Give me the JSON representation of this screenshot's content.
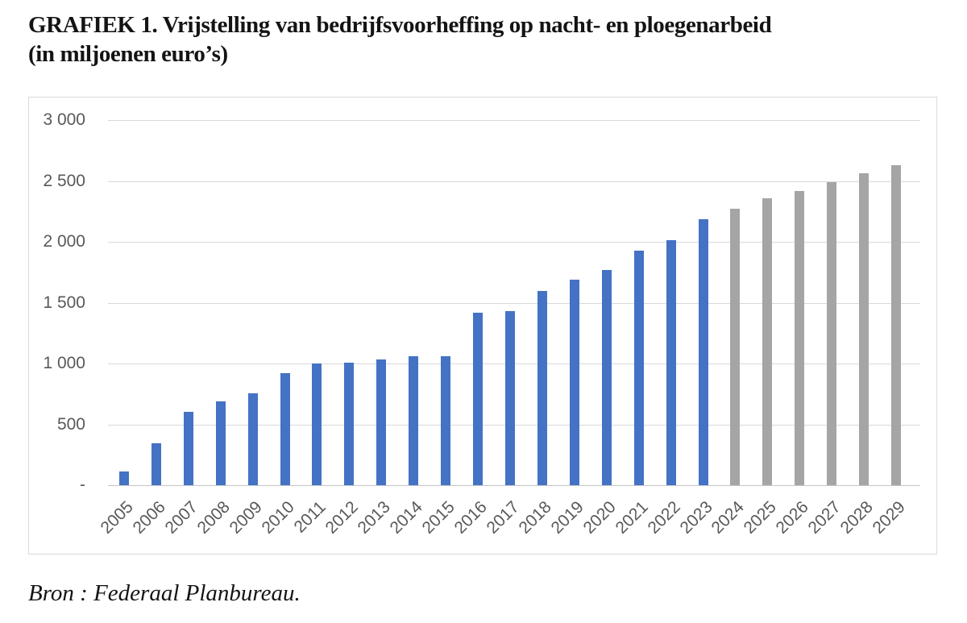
{
  "title": {
    "line1": "GRAFIEK 1. Vrijstelling van bedrijfsvoorheffing op nacht- en ploegenarbeid",
    "line2": "(in miljoenen euro’s)"
  },
  "source": {
    "text": "Bron : Federaal Planbureau."
  },
  "colors": {
    "bar_actual": "#4472C4",
    "bar_projection": "#A5A5A5",
    "gridline": "#D9D9D9",
    "axis_line": "#C6C6C6",
    "tick_text": "#595959",
    "frame_border": "#D9D9D9",
    "text": "#141414"
  },
  "chart_data": {
    "type": "bar",
    "title": "GRAFIEK 1. Vrijstelling van bedrijfsvoorheffing op nacht- en ploegenarbeid (in miljoenen euro’s)",
    "categories": [
      "2005",
      "2006",
      "2007",
      "2008",
      "2009",
      "2010",
      "2011",
      "2012",
      "2013",
      "2014",
      "2015",
      "2016",
      "2017",
      "2018",
      "2019",
      "2020",
      "2021",
      "2022",
      "2023",
      "2024",
      "2025",
      "2026",
      "2027",
      "2028",
      "2029"
    ],
    "values": [
      110,
      345,
      605,
      690,
      755,
      920,
      1000,
      1005,
      1030,
      1060,
      1060,
      1420,
      1430,
      1595,
      1690,
      1770,
      1930,
      2015,
      2185,
      2270,
      2355,
      2420,
      2490,
      2560,
      2630
    ],
    "bar_color_keys": [
      "blue",
      "blue",
      "blue",
      "blue",
      "blue",
      "blue",
      "blue",
      "blue",
      "blue",
      "blue",
      "blue",
      "blue",
      "blue",
      "blue",
      "blue",
      "blue",
      "blue",
      "blue",
      "blue",
      "gray",
      "gray",
      "gray",
      "gray",
      "gray",
      "gray"
    ],
    "bar_colors": {
      "blue": "#4472C4",
      "gray": "#A5A5A5"
    },
    "y_tick_labels": [
      "3 000",
      "2 500",
      "2 000",
      "1 500",
      "1 000",
      "500",
      "-"
    ],
    "y_tick_values": [
      3000,
      2500,
      2000,
      1500,
      1000,
      500,
      0
    ],
    "ylim": [
      0,
      3000
    ],
    "xlabel": "",
    "ylabel": "",
    "grid": true,
    "legend": false,
    "x_label_rotation_deg": -45
  }
}
